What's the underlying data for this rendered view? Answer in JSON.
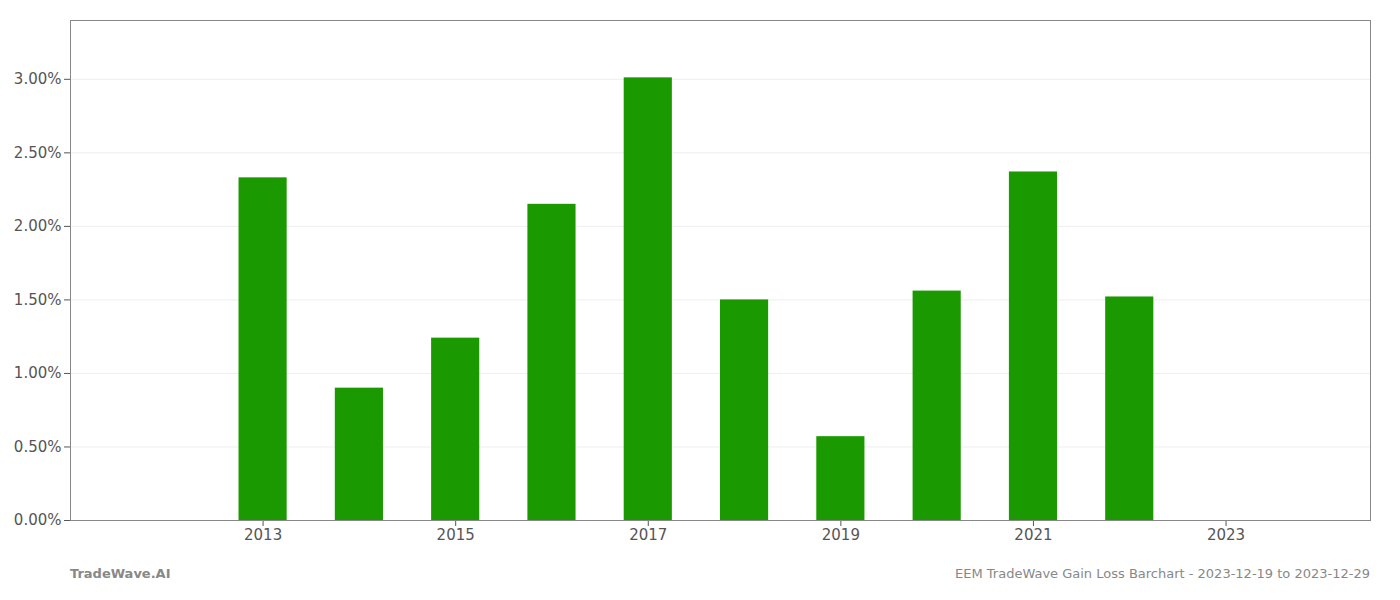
{
  "chart_data": {
    "type": "bar",
    "x": [
      2013,
      2014,
      2015,
      2016,
      2017,
      2018,
      2019,
      2020,
      2021,
      2022
    ],
    "values": [
      0.0233,
      0.009,
      0.0124,
      0.0215,
      0.0301,
      0.015,
      0.0057,
      0.0156,
      0.0237,
      0.0152
    ],
    "color": "#1a9a00",
    "xlim": [
      2011.0,
      2024.5
    ],
    "xticks": [
      2013,
      2015,
      2017,
      2019,
      2021,
      2023
    ],
    "ylim": [
      0,
      0.034
    ],
    "yticks": [
      {
        "value": 0.0,
        "label": "0.00%"
      },
      {
        "value": 0.005,
        "label": "0.50%"
      },
      {
        "value": 0.01,
        "label": "1.00%"
      },
      {
        "value": 0.015,
        "label": "1.50%"
      },
      {
        "value": 0.02,
        "label": "2.00%"
      },
      {
        "value": 0.025,
        "label": "2.50%"
      },
      {
        "value": 0.03,
        "label": "3.00%"
      }
    ],
    "grid": true,
    "annotations": [
      "TradeWave.AI",
      "EEM TradeWave Gain Loss Barchart - 2023-12-19 to 2023-12-29"
    ]
  }
}
